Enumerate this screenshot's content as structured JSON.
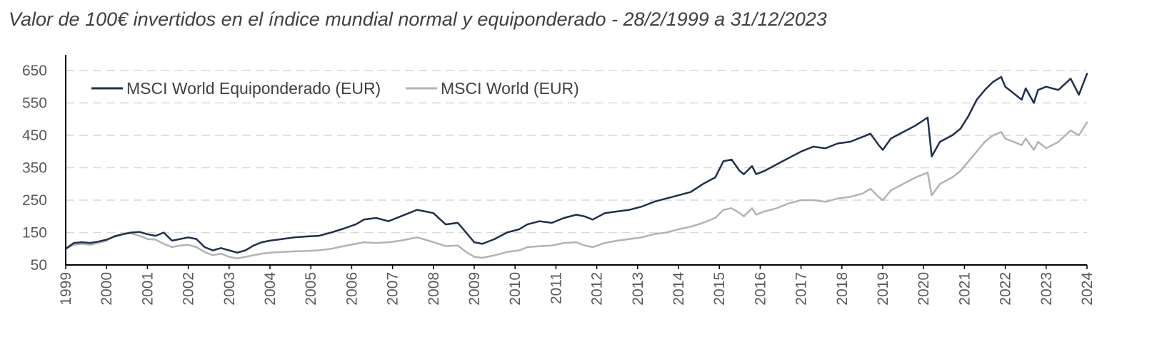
{
  "chart_data": {
    "type": "line",
    "title": "Valor de 100€ invertidos en el índice mundial normal y equiponderado - 28/2/1999 a 31/12/2023",
    "xlabel": "",
    "ylabel": "",
    "ylim": [
      50,
      650
    ],
    "yticks": [
      "650",
      "550",
      "450",
      "350",
      "250",
      "150",
      "50"
    ],
    "ytick_values": [
      650,
      550,
      450,
      350,
      250,
      150,
      50
    ],
    "xlim": [
      1999,
      2024
    ],
    "xticks": [
      "1999",
      "2000",
      "2001",
      "2002",
      "2003",
      "2004",
      "2005",
      "2006",
      "2007",
      "2008",
      "2009",
      "2010",
      "2011",
      "2012",
      "2013",
      "2014",
      "2015",
      "2016",
      "2017",
      "2018",
      "2019",
      "2020",
      "2021",
      "2022",
      "2023",
      "2024"
    ],
    "xtick_values": [
      1999,
      2000,
      2001,
      2002,
      2003,
      2004,
      2005,
      2006,
      2007,
      2008,
      2009,
      2010,
      2011,
      2012,
      2013,
      2014,
      2015,
      2016,
      2017,
      2018,
      2019,
      2020,
      2021,
      2022,
      2023,
      2024
    ],
    "grid": "horizontal dashed",
    "legend_position": "top-left",
    "series": [
      {
        "name": "MSCI World Equiponderado (EUR)",
        "color": "#1f2f4f",
        "x": [
          1999.0,
          1999.2,
          1999.4,
          1999.6,
          1999.8,
          2000.0,
          2000.2,
          2000.4,
          2000.6,
          2000.8,
          2001.0,
          2001.2,
          2001.4,
          2001.6,
          2001.8,
          2002.0,
          2002.2,
          2002.4,
          2002.6,
          2002.8,
          2003.0,
          2003.2,
          2003.4,
          2003.6,
          2003.8,
          2004.0,
          2004.3,
          2004.6,
          2004.9,
          2005.2,
          2005.5,
          2005.8,
          2006.1,
          2006.3,
          2006.6,
          2006.9,
          2007.2,
          2007.4,
          2007.6,
          2007.8,
          2008.0,
          2008.3,
          2008.6,
          2008.8,
          2009.0,
          2009.2,
          2009.5,
          2009.8,
          2010.1,
          2010.3,
          2010.6,
          2010.9,
          2011.2,
          2011.5,
          2011.7,
          2011.9,
          2012.2,
          2012.5,
          2012.8,
          2013.1,
          2013.4,
          2013.7,
          2014.0,
          2014.3,
          2014.6,
          2014.9,
          2015.1,
          2015.3,
          2015.5,
          2015.6,
          2015.8,
          2015.9,
          2016.1,
          2016.4,
          2016.7,
          2017.0,
          2017.3,
          2017.6,
          2017.9,
          2018.2,
          2018.5,
          2018.7,
          2018.9,
          2019.0,
          2019.2,
          2019.5,
          2019.8,
          2020.1,
          2020.2,
          2020.4,
          2020.7,
          2020.9,
          2021.1,
          2021.3,
          2021.5,
          2021.7,
          2021.9,
          2022.0,
          2022.2,
          2022.4,
          2022.5,
          2022.7,
          2022.8,
          2023.0,
          2023.3,
          2023.6,
          2023.8,
          2024.0
        ],
        "values": [
          100,
          118,
          120,
          118,
          122,
          128,
          138,
          145,
          150,
          152,
          145,
          140,
          150,
          125,
          130,
          135,
          130,
          105,
          95,
          102,
          95,
          88,
          95,
          110,
          120,
          125,
          130,
          135,
          138,
          140,
          150,
          162,
          175,
          190,
          195,
          185,
          200,
          210,
          220,
          215,
          210,
          175,
          180,
          150,
          120,
          115,
          130,
          150,
          160,
          175,
          185,
          180,
          195,
          205,
          200,
          190,
          210,
          215,
          220,
          230,
          245,
          255,
          265,
          275,
          300,
          320,
          370,
          375,
          340,
          330,
          355,
          330,
          340,
          360,
          380,
          400,
          415,
          410,
          425,
          430,
          445,
          455,
          420,
          405,
          440,
          460,
          480,
          505,
          385,
          430,
          450,
          470,
          510,
          560,
          590,
          615,
          630,
          600,
          580,
          560,
          595,
          550,
          590,
          600,
          590,
          625,
          575,
          640
        ]
      },
      {
        "name": "MSCI World (EUR)",
        "color": "#b3b3b3",
        "x": [
          1999.0,
          1999.2,
          1999.4,
          1999.6,
          1999.8,
          2000.0,
          2000.2,
          2000.4,
          2000.6,
          2000.8,
          2001.0,
          2001.2,
          2001.4,
          2001.6,
          2001.8,
          2002.0,
          2002.2,
          2002.4,
          2002.6,
          2002.8,
          2003.0,
          2003.2,
          2003.4,
          2003.6,
          2003.8,
          2004.0,
          2004.3,
          2004.6,
          2004.9,
          2005.2,
          2005.5,
          2005.8,
          2006.1,
          2006.3,
          2006.6,
          2006.9,
          2007.2,
          2007.4,
          2007.6,
          2007.8,
          2008.0,
          2008.3,
          2008.6,
          2008.8,
          2009.0,
          2009.2,
          2009.5,
          2009.8,
          2010.1,
          2010.3,
          2010.6,
          2010.9,
          2011.2,
          2011.5,
          2011.7,
          2011.9,
          2012.2,
          2012.5,
          2012.8,
          2013.1,
          2013.4,
          2013.7,
          2014.0,
          2014.3,
          2014.6,
          2014.9,
          2015.1,
          2015.3,
          2015.5,
          2015.6,
          2015.8,
          2015.9,
          2016.1,
          2016.4,
          2016.7,
          2017.0,
          2017.3,
          2017.6,
          2017.9,
          2018.2,
          2018.5,
          2018.7,
          2018.9,
          2019.0,
          2019.2,
          2019.5,
          2019.8,
          2020.1,
          2020.2,
          2020.4,
          2020.7,
          2020.9,
          2021.1,
          2021.3,
          2021.5,
          2021.7,
          2021.9,
          2022.0,
          2022.2,
          2022.4,
          2022.5,
          2022.7,
          2022.8,
          2023.0,
          2023.3,
          2023.6,
          2023.8,
          2024.0
        ],
        "values": [
          100,
          112,
          115,
          112,
          118,
          125,
          140,
          145,
          148,
          140,
          130,
          128,
          115,
          105,
          110,
          112,
          105,
          90,
          80,
          85,
          75,
          70,
          75,
          80,
          85,
          88,
          90,
          92,
          93,
          95,
          100,
          108,
          115,
          120,
          118,
          120,
          125,
          130,
          135,
          128,
          120,
          108,
          110,
          90,
          75,
          72,
          80,
          90,
          95,
          105,
          108,
          110,
          118,
          120,
          110,
          105,
          118,
          125,
          130,
          135,
          145,
          150,
          160,
          168,
          180,
          195,
          220,
          225,
          210,
          200,
          225,
          205,
          215,
          225,
          240,
          250,
          250,
          245,
          255,
          260,
          270,
          285,
          260,
          250,
          280,
          300,
          320,
          335,
          265,
          300,
          320,
          340,
          370,
          400,
          430,
          450,
          460,
          440,
          430,
          420,
          440,
          405,
          430,
          410,
          430,
          465,
          450,
          490
        ]
      }
    ]
  }
}
